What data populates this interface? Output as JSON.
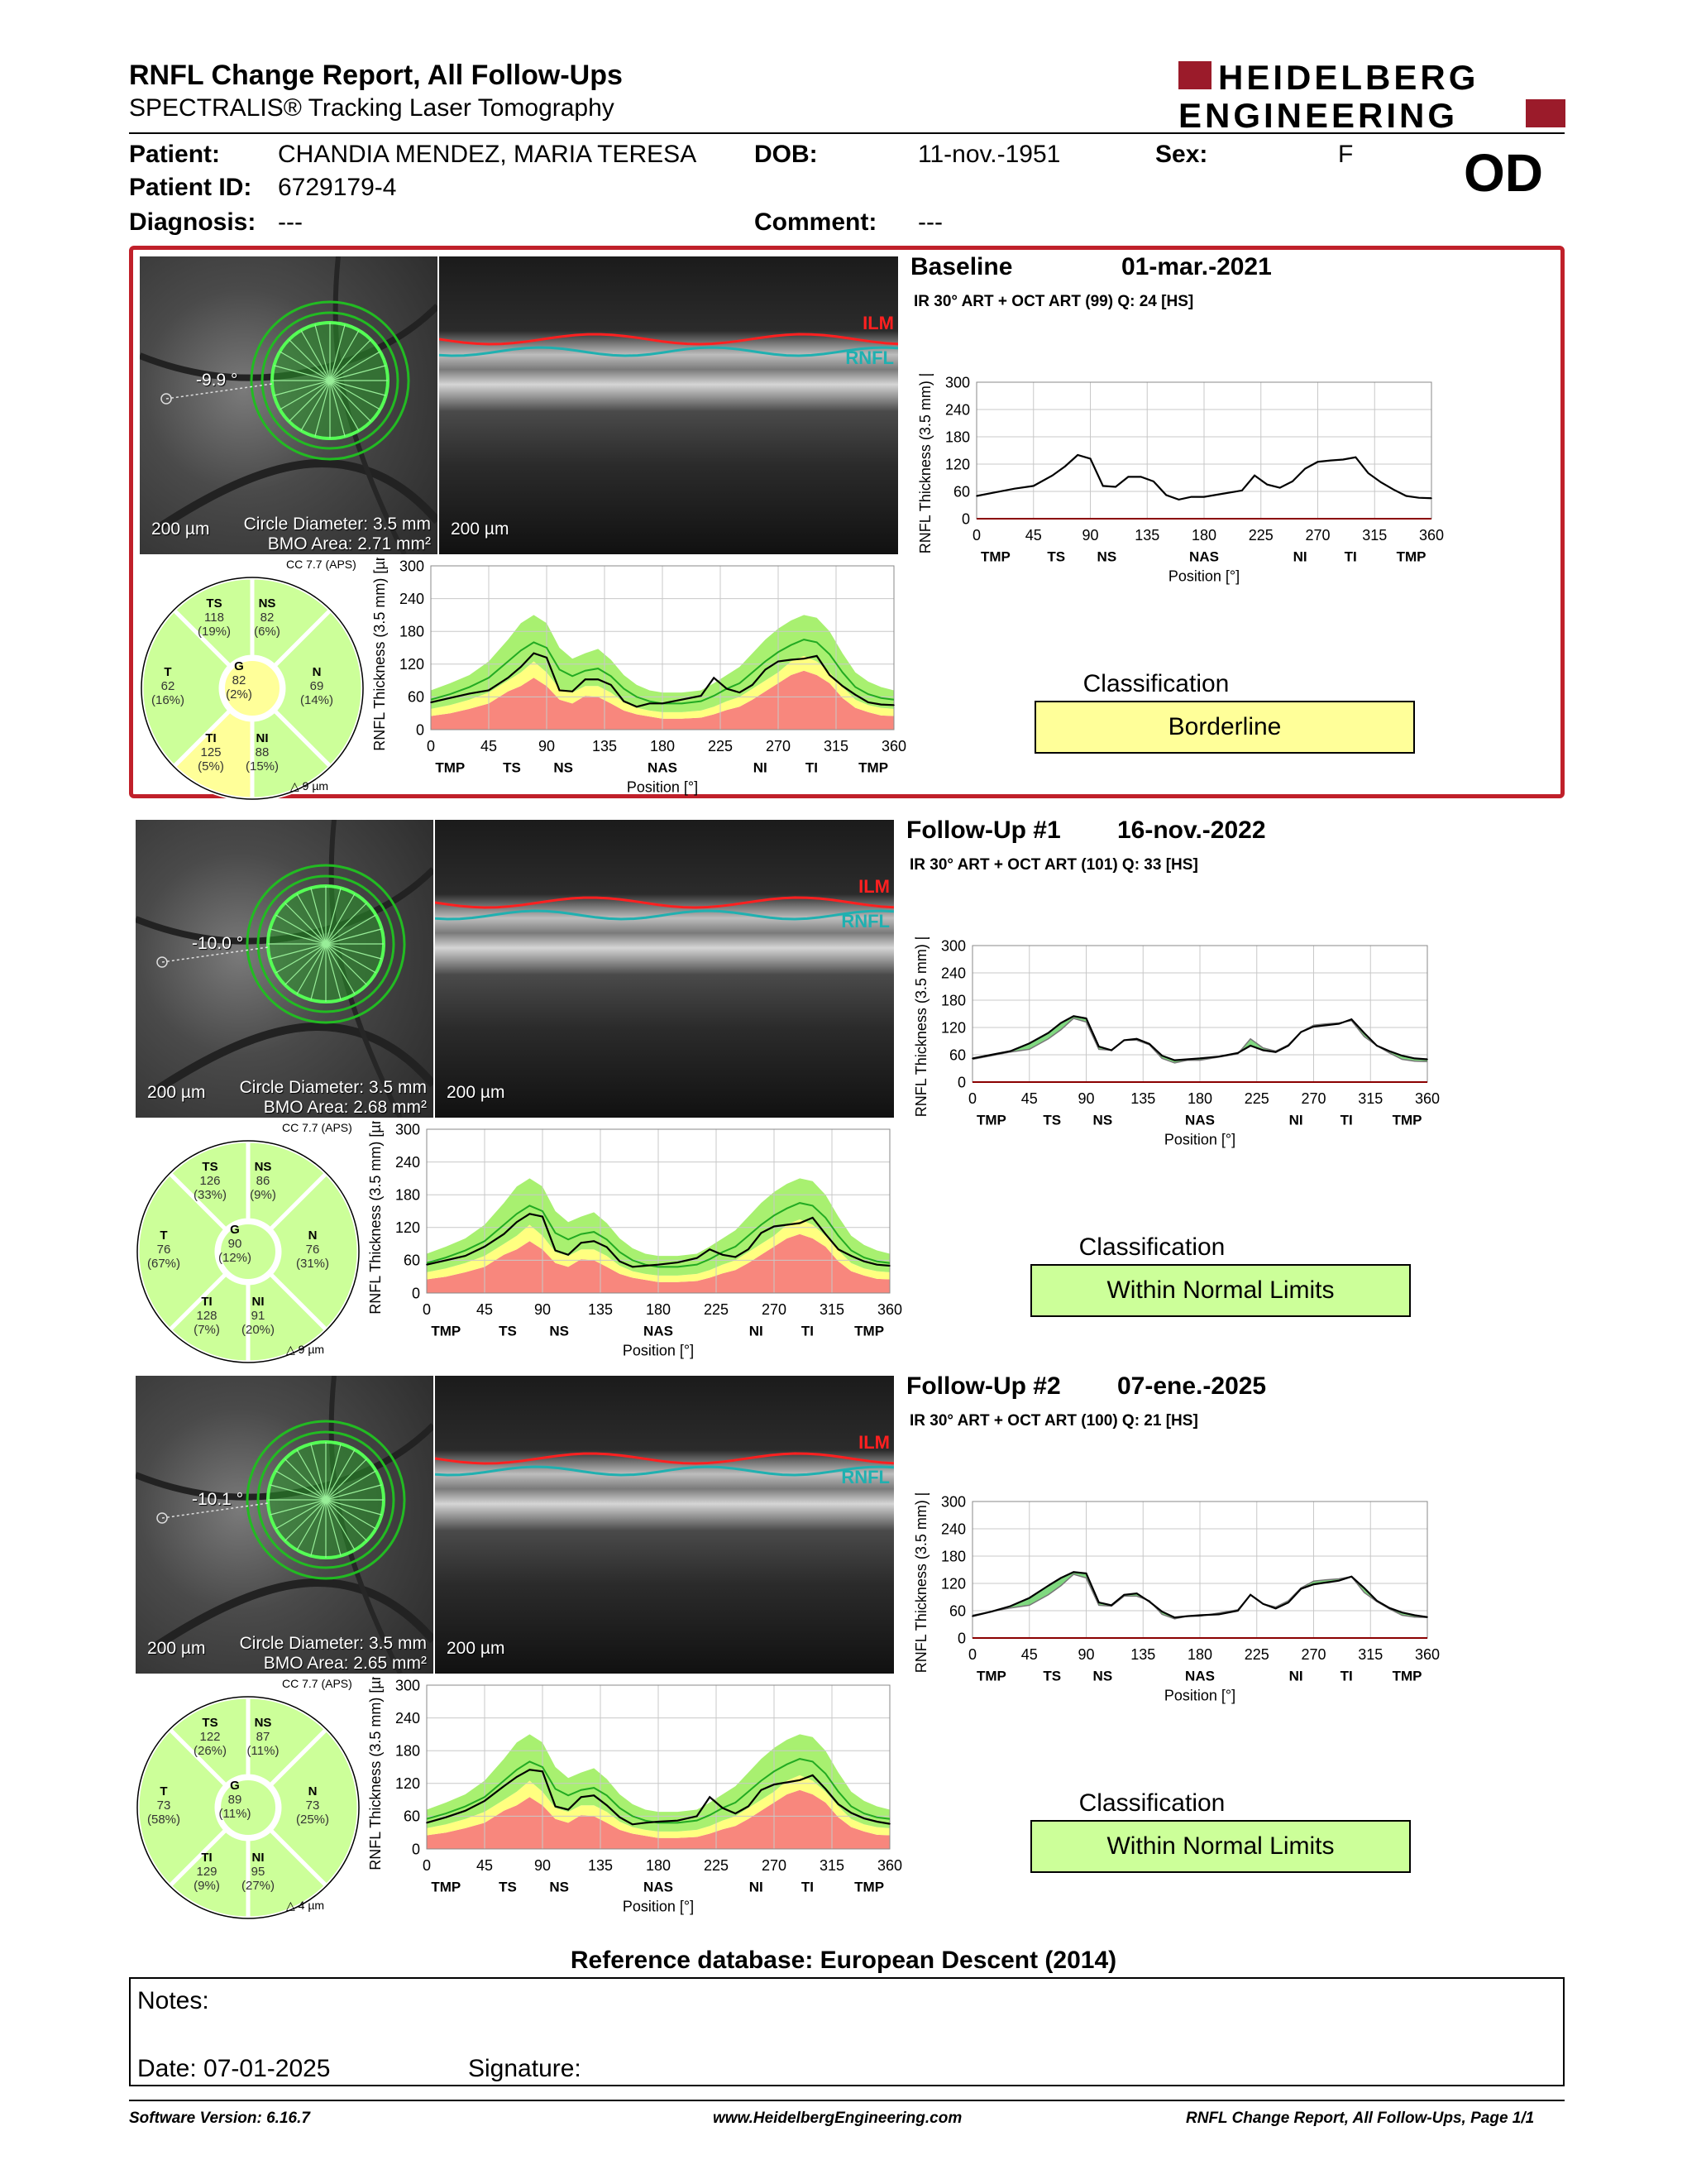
{
  "report": {
    "title": "RNFL Change Report, All Follow-Ups",
    "subtitle": "SPECTRALIS® Tracking Laser Tomography",
    "brand_line1": "HEIDELBERG",
    "brand_line2": "ENGINEERING",
    "brand_color": "#9b1b2a"
  },
  "patient": {
    "label_patient": "Patient:",
    "name": "CHANDIA MENDEZ, MARIA TERESA",
    "label_dob": "DOB:",
    "dob": "11-nov.-1951",
    "label_sex": "Sex:",
    "sex": "F",
    "label_id": "Patient ID:",
    "id": "6729179-4",
    "label_diagnosis": "Diagnosis:",
    "diagnosis": "---",
    "label_comment": "Comment:",
    "comment": "---",
    "eye": "OD"
  },
  "panels": [
    {
      "label": "Baseline",
      "date": "01-mar.-2021",
      "scan": "IR 30° ART + OCT ART (99) Q: 24 [HS]",
      "angle": "-9.9 °",
      "scale": "200 µm",
      "circle_diameter": "Circle Diameter: 3.5 mm",
      "bmo_area": "BMO Area: 2.71 mm²",
      "cc": "CC 7.7 (APS)",
      "dbmoc": "9 µm",
      "classification_label": "Classification",
      "classification": "Borderline",
      "classification_color": "#ffff99",
      "sectors": {
        "TS": {
          "name": "TS",
          "value": "118",
          "pct": "(19%)",
          "color": "#ccff99"
        },
        "NS": {
          "name": "NS",
          "value": "82",
          "pct": "(6%)",
          "color": "#ccff99"
        },
        "T": {
          "name": "T",
          "value": "62",
          "pct": "(16%)",
          "color": "#ccff99"
        },
        "G": {
          "name": "G",
          "value": "82",
          "pct": "(2%)",
          "color": "#ffff99"
        },
        "N": {
          "name": "N",
          "value": "69",
          "pct": "(14%)",
          "color": "#ccff99"
        },
        "TI": {
          "name": "TI",
          "value": "125",
          "pct": "(5%)",
          "color": "#ffff99"
        },
        "NI": {
          "name": "NI",
          "value": "88",
          "pct": "(15%)",
          "color": "#ccff99"
        }
      }
    },
    {
      "label": "Follow-Up #1",
      "date": "16-nov.-2022",
      "scan": "IR 30° ART + OCT ART (101) Q: 33 [HS]",
      "angle": "-10.0 °",
      "scale": "200 µm",
      "circle_diameter": "Circle Diameter: 3.5 mm",
      "bmo_area": "BMO Area: 2.68 mm²",
      "cc": "CC 7.7 (APS)",
      "dbmoc": "9 µm",
      "classification_label": "Classification",
      "classification": "Within Normal Limits",
      "classification_color": "#ccff99",
      "sectors": {
        "TS": {
          "name": "TS",
          "value": "126",
          "pct": "(33%)",
          "color": "#ccff99"
        },
        "NS": {
          "name": "NS",
          "value": "86",
          "pct": "(9%)",
          "color": "#ccff99"
        },
        "T": {
          "name": "T",
          "value": "76",
          "pct": "(67%)",
          "color": "#ccff99"
        },
        "G": {
          "name": "G",
          "value": "90",
          "pct": "(12%)",
          "color": "#ccff99"
        },
        "N": {
          "name": "N",
          "value": "76",
          "pct": "(31%)",
          "color": "#ccff99"
        },
        "TI": {
          "name": "TI",
          "value": "128",
          "pct": "(7%)",
          "color": "#ccff99"
        },
        "NI": {
          "name": "NI",
          "value": "91",
          "pct": "(20%)",
          "color": "#ccff99"
        }
      }
    },
    {
      "label": "Follow-Up #2",
      "date": "07-ene.-2025",
      "scan": "IR 30° ART + OCT ART (100) Q: 21 [HS]",
      "angle": "-10.1 °",
      "scale": "200 µm",
      "circle_diameter": "Circle Diameter: 3.5 mm",
      "bmo_area": "BMO Area: 2.65 mm²",
      "cc": "CC 7.7 (APS)",
      "dbmoc": "4 µm",
      "classification_label": "Classification",
      "classification": "Within Normal Limits",
      "classification_color": "#ccff99",
      "sectors": {
        "TS": {
          "name": "TS",
          "value": "122",
          "pct": "(26%)",
          "color": "#ccff99"
        },
        "NS": {
          "name": "NS",
          "value": "87",
          "pct": "(11%)",
          "color": "#ccff99"
        },
        "T": {
          "name": "T",
          "value": "73",
          "pct": "(58%)",
          "color": "#ccff99"
        },
        "G": {
          "name": "G",
          "value": "89",
          "pct": "(11%)",
          "color": "#ccff99"
        },
        "N": {
          "name": "N",
          "value": "73",
          "pct": "(25%)",
          "color": "#ccff99"
        },
        "TI": {
          "name": "TI",
          "value": "129",
          "pct": "(9%)",
          "color": "#ccff99"
        },
        "NI": {
          "name": "NI",
          "value": "95",
          "pct": "(27%)",
          "color": "#ccff99"
        }
      }
    }
  ],
  "chart_data": {
    "type": "line",
    "ylabel": "RNFL Thickness (3.5 mm) [µm]",
    "xlabel": "Position [°]",
    "ylim": [
      0,
      300
    ],
    "yticks": [
      "0",
      "60",
      "120",
      "180",
      "240",
      "300"
    ],
    "xlim": [
      0,
      360
    ],
    "xticks": [
      "0",
      "45",
      "90",
      "135",
      "180",
      "225",
      "270",
      "315",
      "360"
    ],
    "sector_labels": [
      {
        "pos": 15,
        "text": "TMP"
      },
      {
        "pos": 63,
        "text": "TS"
      },
      {
        "pos": 103,
        "text": "NS"
      },
      {
        "pos": 180,
        "text": "NAS"
      },
      {
        "pos": 256,
        "text": "NI"
      },
      {
        "pos": 296,
        "text": "TI"
      },
      {
        "pos": 344,
        "text": "TMP"
      }
    ],
    "positions": [
      0,
      15,
      30,
      45,
      60,
      70,
      80,
      90,
      100,
      110,
      120,
      130,
      140,
      150,
      160,
      170,
      180,
      195,
      210,
      220,
      230,
      240,
      250,
      260,
      270,
      280,
      290,
      300,
      310,
      320,
      330,
      340,
      350,
      360
    ],
    "normative": {
      "p1": [
        25,
        30,
        38,
        48,
        70,
        80,
        95,
        80,
        55,
        48,
        62,
        60,
        48,
        35,
        28,
        24,
        20,
        20,
        22,
        28,
        36,
        42,
        55,
        70,
        85,
        100,
        108,
        100,
        85,
        58,
        40,
        32,
        26,
        25
      ],
      "p5": [
        38,
        45,
        55,
        68,
        90,
        105,
        125,
        105,
        75,
        68,
        80,
        80,
        68,
        50,
        40,
        35,
        32,
        32,
        35,
        42,
        52,
        60,
        75,
        90,
        105,
        125,
        135,
        125,
        105,
        78,
        55,
        45,
        40,
        38
      ],
      "mean": [
        55,
        65,
        78,
        95,
        125,
        145,
        160,
        150,
        110,
        98,
        108,
        112,
        98,
        75,
        60,
        52,
        48,
        48,
        52,
        62,
        75,
        85,
        105,
        125,
        142,
        155,
        165,
        160,
        138,
        105,
        78,
        65,
        58,
        55
      ],
      "p95": [
        72,
        85,
        100,
        125,
        165,
        195,
        210,
        195,
        150,
        130,
        140,
        148,
        128,
        100,
        82,
        72,
        68,
        68,
        72,
        85,
        100,
        115,
        140,
        165,
        185,
        200,
        210,
        205,
        180,
        140,
        105,
        88,
        78,
        72
      ]
    },
    "series": [
      {
        "name": "Baseline",
        "values": [
          50,
          58,
          66,
          72,
          95,
          115,
          140,
          132,
          72,
          70,
          92,
          92,
          82,
          52,
          42,
          48,
          48,
          55,
          62,
          95,
          75,
          68,
          82,
          110,
          125,
          128,
          130,
          135,
          100,
          80,
          64,
          50,
          46,
          45
        ]
      },
      {
        "name": "Follow-Up #1",
        "values": [
          52,
          60,
          68,
          85,
          108,
          130,
          145,
          140,
          78,
          70,
          92,
          95,
          84,
          58,
          48,
          50,
          52,
          56,
          64,
          80,
          70,
          66,
          80,
          110,
          122,
          125,
          128,
          138,
          108,
          80,
          68,
          58,
          52,
          50
        ]
      },
      {
        "name": "Follow-Up #2",
        "values": [
          48,
          58,
          70,
          88,
          115,
          132,
          145,
          142,
          78,
          72,
          95,
          98,
          80,
          58,
          45,
          48,
          50,
          52,
          60,
          95,
          75,
          65,
          78,
          108,
          118,
          122,
          126,
          135,
          110,
          82,
          66,
          56,
          50,
          46
        ]
      }
    ]
  },
  "footer": {
    "refdb": "Reference database: European Descent (2014)",
    "notes_label": "Notes:",
    "date": "Date: 07-01-2025",
    "signature_label": "Signature:",
    "software": "Software Version: 6.16.7",
    "website": "www.HeidelbergEngineering.com",
    "page": "RNFL Change Report, All Follow-Ups, Page 1/1"
  },
  "layers": {
    "ilm": "ILM",
    "rnfl": "RNFL"
  }
}
